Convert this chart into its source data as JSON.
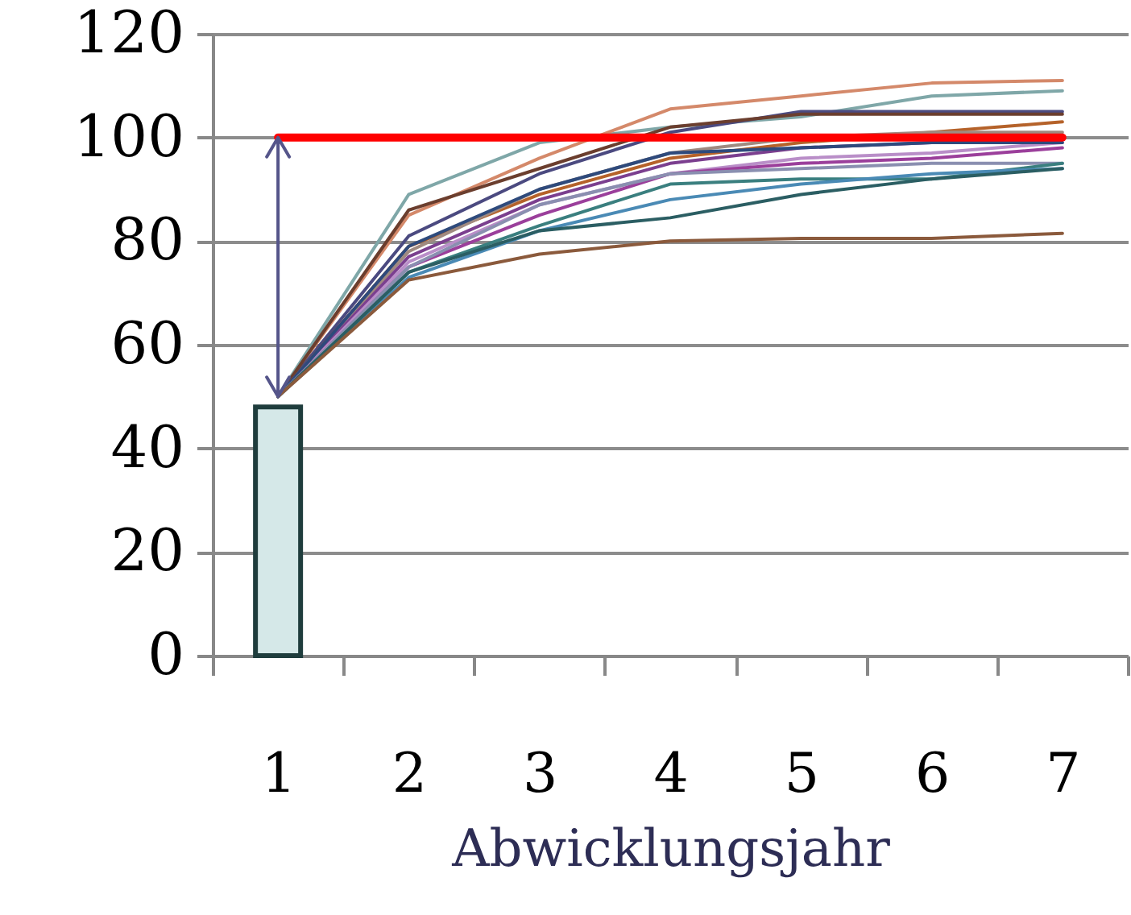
{
  "chart_data": {
    "type": "line",
    "xlabel": "Abwicklungsjahr",
    "categories": [
      "1",
      "2",
      "3",
      "4",
      "5",
      "6",
      "7"
    ],
    "ylim": [
      0,
      120
    ],
    "yticks": [
      0,
      20,
      40,
      60,
      80,
      100,
      120
    ],
    "grid": "y",
    "series": [
      {
        "type": "bar",
        "color": "#d5e8e8",
        "values": [
          48,
          null,
          null,
          null,
          null,
          null,
          null
        ]
      },
      {
        "color": "#7fa7a8",
        "values": [
          50,
          89,
          99,
          102,
          104,
          108,
          109
        ]
      },
      {
        "color": "#d4896a",
        "values": [
          50,
          85,
          96,
          105.5,
          108,
          110.5,
          111
        ]
      },
      {
        "color": "#4b4a80",
        "values": [
          50,
          81,
          93,
          101,
          105,
          105,
          105
        ]
      },
      {
        "color": "#6b3e2e",
        "values": [
          50,
          86,
          94,
          102,
          104.5,
          104.5,
          104.5
        ]
      },
      {
        "color": "#b5622a",
        "values": [
          50,
          79,
          89,
          96,
          99,
          101,
          103
        ]
      },
      {
        "color": "#a08a80",
        "values": [
          50,
          78,
          90,
          97,
          100,
          101,
          101
        ]
      },
      {
        "color": "#7b3f8f",
        "values": [
          50,
          77,
          88,
          95,
          98,
          99,
          100
        ]
      },
      {
        "color": "#b98ec8",
        "values": [
          50,
          76,
          87,
          93,
          96,
          97,
          99
        ]
      },
      {
        "color": "#2e4a7c",
        "values": [
          50,
          79,
          90,
          97,
          98,
          99,
          99
        ]
      },
      {
        "color": "#9b3f9b",
        "values": [
          50,
          75,
          85,
          93,
          95,
          96,
          98
        ]
      },
      {
        "color": "#8a8fb0",
        "values": [
          50,
          75,
          87,
          93,
          94,
          95,
          95
        ]
      },
      {
        "color": "#3a7f7f",
        "values": [
          50,
          74,
          83,
          91,
          92,
          92,
          95
        ]
      },
      {
        "color": "#4a8ab5",
        "values": [
          50,
          73,
          82,
          88,
          91,
          93,
          94
        ]
      },
      {
        "color": "#2b5e63",
        "values": [
          50,
          74,
          82,
          84.5,
          89,
          92,
          94
        ]
      },
      {
        "color": "#8b5a3c",
        "values": [
          50,
          72.5,
          77.5,
          80,
          80.5,
          80.5,
          81.5
        ]
      },
      {
        "color": "#ff0000",
        "values": [
          100,
          100,
          100,
          100,
          100,
          100,
          100
        ]
      }
    ]
  }
}
